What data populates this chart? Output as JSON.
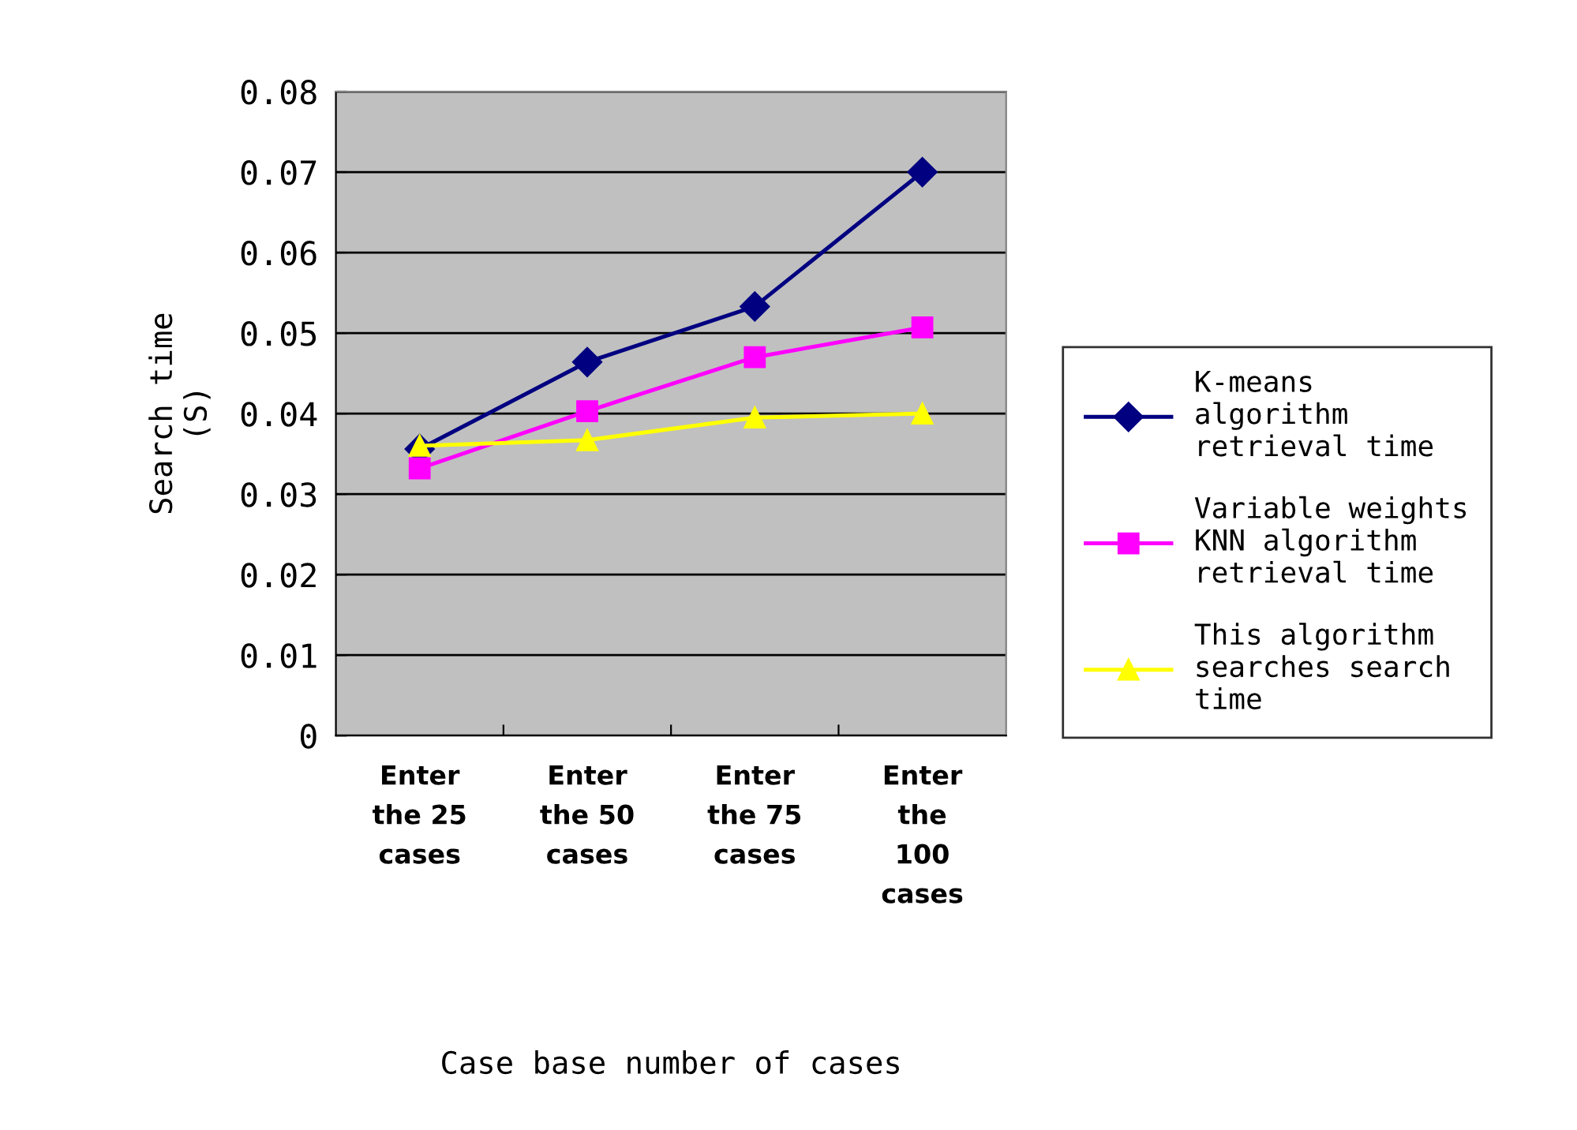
{
  "chart_data": {
    "type": "line",
    "xlabel": "Case base number of cases",
    "ylabel": "Search time\n(S)",
    "categories": [
      "Enter\nthe 25\ncases",
      "Enter\nthe 50\ncases",
      "Enter\nthe 75\ncases",
      "Enter\nthe\n100\ncases"
    ],
    "series": [
      {
        "name": "K-means\nalgorithm\nretrieval time",
        "color": "#000080",
        "marker": "diamond",
        "values": [
          0.0356,
          0.0464,
          0.0533,
          0.07
        ]
      },
      {
        "name": "Variable weights\nKNN algorithm\nretrieval time",
        "color": "#ff00ff",
        "marker": "square",
        "values": [
          0.0332,
          0.0403,
          0.047,
          0.0507
        ]
      },
      {
        "name": "This algorithm\nsearches search\ntime",
        "color": "#ffff00",
        "marker": "triangle",
        "values": [
          0.036,
          0.0367,
          0.0395,
          0.04
        ]
      }
    ],
    "ylim": [
      0,
      0.08
    ],
    "yticks": [
      0,
      0.01,
      0.02,
      0.03,
      0.04,
      0.05,
      0.06,
      0.07,
      0.08
    ],
    "grid": "y",
    "legend": "right"
  }
}
